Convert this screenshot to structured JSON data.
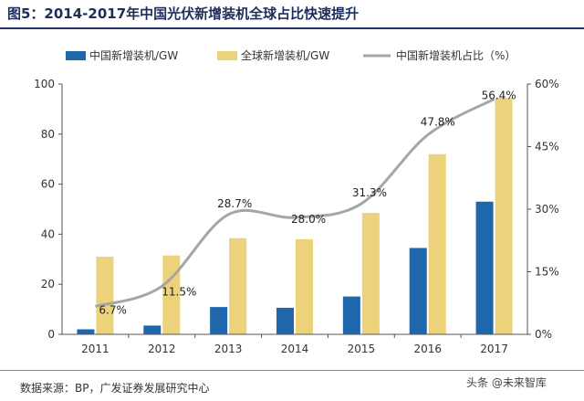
{
  "header": {
    "title": "图5：2014-2017年中国光伏新增装机全球占比快速提升"
  },
  "footer": {
    "source": "数据来源：BP，广发证券发展研究中心",
    "watermark": "头条 @未来智库"
  },
  "colors": {
    "china": "#1f67ad",
    "global": "#ecd27a",
    "share": "#a6a6a6",
    "axis": "#555555"
  },
  "chart_data": {
    "type": "bar",
    "title": "图5：2014-2017年中国光伏新增装机全球占比快速提升",
    "categories": [
      "2011",
      "2012",
      "2013",
      "2014",
      "2015",
      "2016",
      "2017"
    ],
    "series": [
      {
        "name": "中国新增装机/GW",
        "type": "bar",
        "axis": "left",
        "values": [
          2,
          3.5,
          10.9,
          10.6,
          15.1,
          34.5,
          53
        ]
      },
      {
        "name": "全球新增装机/GW",
        "type": "bar",
        "axis": "left",
        "values": [
          31,
          31.5,
          38.4,
          38,
          48.5,
          72,
          94.5
        ]
      },
      {
        "name": "中国新增装机占比（%）",
        "type": "line",
        "axis": "right",
        "values": [
          6.7,
          11.5,
          28.7,
          28.0,
          31.3,
          47.8,
          56.4
        ],
        "labels": [
          "6.7%",
          "11.5%",
          "28.7%",
          "28.0%",
          "31.3%",
          "47.8%",
          "56.4%"
        ]
      }
    ],
    "y_left": {
      "ylim": [
        0,
        100
      ],
      "ticks": [
        "0",
        "20",
        "40",
        "60",
        "80",
        "100"
      ]
    },
    "y_right": {
      "ylim": [
        0,
        60
      ],
      "ticks": [
        "0%",
        "15%",
        "30%",
        "45%",
        "60%"
      ]
    },
    "legend": "top",
    "grid": false
  }
}
